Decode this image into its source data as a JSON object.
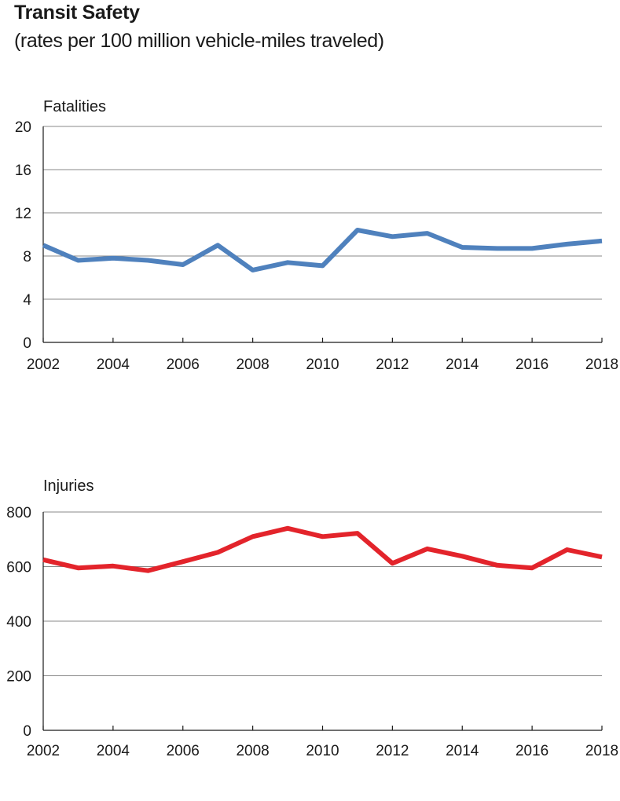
{
  "title": "Transit Safety",
  "subtitle": "(rates per 100 million vehicle-miles traveled)",
  "colors": {
    "fatalities": "#4f81bd",
    "injuries": "#e3242b",
    "grid": "#888888",
    "axis": "#1a1a1a"
  },
  "chart_data": [
    {
      "type": "line",
      "title": "Fatalities",
      "x": [
        2002,
        2003,
        2004,
        2005,
        2006,
        2007,
        2008,
        2009,
        2010,
        2011,
        2012,
        2013,
        2014,
        2015,
        2016,
        2017,
        2018
      ],
      "series": [
        {
          "values": [
            9.0,
            7.6,
            7.8,
            7.6,
            7.2,
            9.0,
            6.7,
            7.4,
            7.1,
            10.4,
            9.8,
            10.1,
            8.8,
            8.7,
            8.7,
            9.1,
            9.4
          ]
        }
      ],
      "xticks": [
        2002,
        2004,
        2006,
        2008,
        2010,
        2012,
        2014,
        2016,
        2018
      ],
      "yticks": [
        0,
        4,
        8,
        12,
        16,
        20
      ],
      "ylim": [
        0,
        20
      ],
      "xlim": [
        2002,
        2018
      ],
      "grid": true
    },
    {
      "type": "line",
      "title": "Injuries",
      "x": [
        2002,
        2003,
        2004,
        2005,
        2006,
        2007,
        2008,
        2009,
        2010,
        2011,
        2012,
        2013,
        2014,
        2015,
        2016,
        2017,
        2018
      ],
      "series": [
        {
          "values": [
            625,
            595,
            602,
            585,
            618,
            652,
            710,
            740,
            710,
            722,
            612,
            665,
            638,
            605,
            595,
            662,
            635
          ]
        }
      ],
      "xticks": [
        2002,
        2004,
        2006,
        2008,
        2010,
        2012,
        2014,
        2016,
        2018
      ],
      "yticks": [
        0,
        200,
        400,
        600,
        800
      ],
      "ylim": [
        0,
        800
      ],
      "xlim": [
        2002,
        2018
      ],
      "grid": true
    }
  ]
}
